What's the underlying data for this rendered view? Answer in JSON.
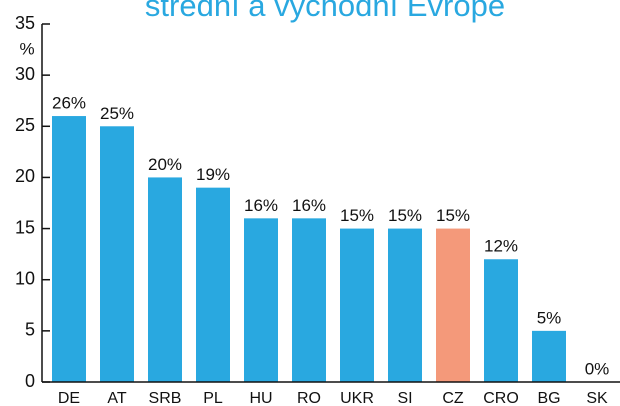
{
  "chart_data": {
    "type": "bar",
    "title": "střední a východní Evrope",
    "ylabel": "%",
    "categories": [
      "DE",
      "AT",
      "SRB",
      "PL",
      "HU",
      "RO",
      "UKR",
      "SI",
      "CZ",
      "CRO",
      "BG",
      "SK"
    ],
    "values": [
      26,
      25,
      20,
      19,
      16,
      16,
      15,
      15,
      15,
      12,
      5,
      0
    ],
    "value_labels": [
      "26%",
      "25%",
      "20%",
      "19%",
      "16%",
      "16%",
      "15%",
      "15%",
      "15%",
      "12%",
      "5%",
      "0%"
    ],
    "colors": [
      "#29a8e0",
      "#29a8e0",
      "#29a8e0",
      "#29a8e0",
      "#29a8e0",
      "#29a8e0",
      "#29a8e0",
      "#29a8e0",
      "#f4997a",
      "#29a8e0",
      "#29a8e0",
      "#29a8e0"
    ],
    "ylim": [
      0,
      35
    ],
    "yticks": [
      0,
      5,
      10,
      15,
      20,
      25,
      30,
      35
    ],
    "grid": false
  }
}
